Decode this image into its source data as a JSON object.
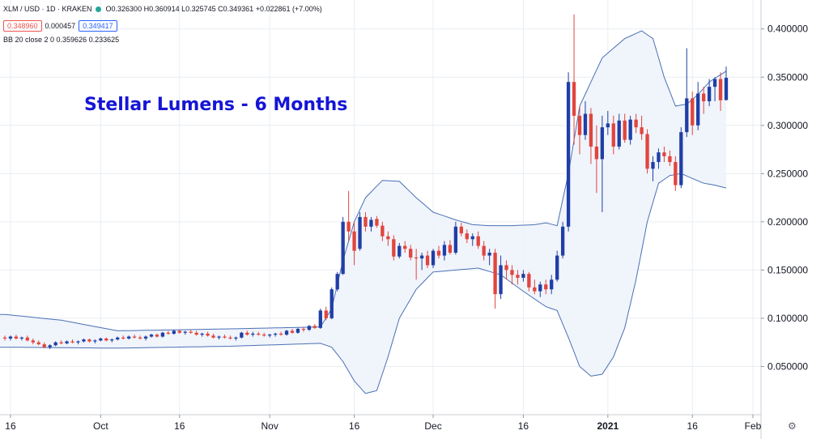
{
  "legend": {
    "symbol": "XLM / USD · 1D · KRAKEN",
    "ohlc": "O0.326300 H0.360914 L0.325745 C0.349361 +0.022861 (+7.00%)",
    "bid": "0.348960",
    "spread": "0.000457",
    "ask": "0.349417",
    "indicator": "BB 20 close 2 0  0.359626 0.233625"
  },
  "annotation": "Stellar Lumens - 6 Months",
  "colors": {
    "up": "#1f3fa6",
    "down": "#e1453d",
    "band_line": "#4a70b5",
    "band_fill": "#eef3fb",
    "grid": "#e9edf3",
    "annotation": "#1515d6"
  },
  "settings_icon": "gear-icon",
  "chart_data": {
    "type": "candlestick",
    "title": "Stellar Lumens - 6 Months",
    "ylim": [
      0.0,
      0.43
    ],
    "y_ticks": [
      "0.400000",
      "0.350000",
      "0.300000",
      "0.250000",
      "0.200000",
      "0.150000",
      "0.100000",
      "0.050000"
    ],
    "x_ticks": [
      "16",
      "Oct",
      "16",
      "Nov",
      "16",
      "Dec",
      "16",
      "2021",
      "16",
      "Feb"
    ],
    "grid": true,
    "series": [
      {
        "name": "XLM / USD",
        "ohlc": [
          [
            0.08,
            0.082,
            0.077,
            0.079
          ],
          [
            0.079,
            0.082,
            0.077,
            0.081
          ],
          [
            0.081,
            0.083,
            0.078,
            0.079
          ],
          [
            0.079,
            0.081,
            0.077,
            0.08
          ],
          [
            0.08,
            0.082,
            0.076,
            0.077
          ],
          [
            0.077,
            0.079,
            0.073,
            0.075
          ],
          [
            0.075,
            0.077,
            0.072,
            0.073
          ],
          [
            0.073,
            0.075,
            0.069,
            0.07
          ],
          [
            0.07,
            0.073,
            0.068,
            0.072
          ],
          [
            0.072,
            0.076,
            0.071,
            0.075
          ],
          [
            0.075,
            0.077,
            0.073,
            0.074
          ],
          [
            0.074,
            0.077,
            0.073,
            0.076
          ],
          [
            0.076,
            0.078,
            0.074,
            0.075
          ],
          [
            0.075,
            0.077,
            0.073,
            0.076
          ],
          [
            0.076,
            0.079,
            0.075,
            0.078
          ],
          [
            0.078,
            0.079,
            0.075,
            0.076
          ],
          [
            0.076,
            0.078,
            0.074,
            0.077
          ],
          [
            0.077,
            0.08,
            0.076,
            0.079
          ],
          [
            0.079,
            0.08,
            0.076,
            0.077
          ],
          [
            0.077,
            0.079,
            0.075,
            0.078
          ],
          [
            0.078,
            0.081,
            0.077,
            0.08
          ],
          [
            0.08,
            0.082,
            0.078,
            0.079
          ],
          [
            0.079,
            0.082,
            0.078,
            0.081
          ],
          [
            0.081,
            0.083,
            0.079,
            0.08
          ],
          [
            0.08,
            0.082,
            0.078,
            0.079
          ],
          [
            0.079,
            0.082,
            0.077,
            0.081
          ],
          [
            0.081,
            0.084,
            0.08,
            0.083
          ],
          [
            0.083,
            0.084,
            0.08,
            0.081
          ],
          [
            0.081,
            0.086,
            0.08,
            0.085
          ],
          [
            0.085,
            0.087,
            0.083,
            0.084
          ],
          [
            0.084,
            0.088,
            0.083,
            0.087
          ],
          [
            0.087,
            0.088,
            0.084,
            0.085
          ],
          [
            0.085,
            0.087,
            0.083,
            0.086
          ],
          [
            0.086,
            0.088,
            0.084,
            0.085
          ],
          [
            0.085,
            0.087,
            0.082,
            0.083
          ],
          [
            0.083,
            0.085,
            0.081,
            0.084
          ],
          [
            0.084,
            0.086,
            0.081,
            0.082
          ],
          [
            0.082,
            0.084,
            0.079,
            0.08
          ],
          [
            0.08,
            0.082,
            0.078,
            0.081
          ],
          [
            0.081,
            0.083,
            0.079,
            0.08
          ],
          [
            0.08,
            0.082,
            0.078,
            0.079
          ],
          [
            0.079,
            0.081,
            0.077,
            0.08
          ],
          [
            0.08,
            0.086,
            0.079,
            0.085
          ],
          [
            0.085,
            0.087,
            0.082,
            0.083
          ],
          [
            0.083,
            0.086,
            0.081,
            0.084
          ],
          [
            0.084,
            0.086,
            0.082,
            0.083
          ],
          [
            0.083,
            0.085,
            0.081,
            0.082
          ],
          [
            0.082,
            0.084,
            0.08,
            0.083
          ],
          [
            0.083,
            0.085,
            0.081,
            0.084
          ],
          [
            0.084,
            0.086,
            0.082,
            0.083
          ],
          [
            0.083,
            0.088,
            0.082,
            0.087
          ],
          [
            0.087,
            0.089,
            0.084,
            0.085
          ],
          [
            0.085,
            0.09,
            0.084,
            0.089
          ],
          [
            0.089,
            0.091,
            0.086,
            0.088
          ],
          [
            0.088,
            0.093,
            0.087,
            0.092
          ],
          [
            0.092,
            0.094,
            0.089,
            0.09
          ],
          [
            0.09,
            0.11,
            0.089,
            0.108
          ],
          [
            0.108,
            0.112,
            0.098,
            0.1
          ],
          [
            0.1,
            0.132,
            0.099,
            0.13
          ],
          [
            0.13,
            0.148,
            0.128,
            0.146
          ],
          [
            0.146,
            0.205,
            0.145,
            0.2
          ],
          [
            0.2,
            0.232,
            0.18,
            0.19
          ],
          [
            0.19,
            0.2,
            0.155,
            0.17
          ],
          [
            0.172,
            0.21,
            0.17,
            0.205
          ],
          [
            0.205,
            0.21,
            0.19,
            0.195
          ],
          [
            0.195,
            0.205,
            0.19,
            0.202
          ],
          [
            0.203,
            0.206,
            0.194,
            0.196
          ],
          [
            0.196,
            0.2,
            0.18,
            0.185
          ],
          [
            0.185,
            0.19,
            0.175,
            0.182
          ],
          [
            0.182,
            0.186,
            0.16,
            0.164
          ],
          [
            0.164,
            0.178,
            0.162,
            0.175
          ],
          [
            0.175,
            0.18,
            0.168,
            0.172
          ],
          [
            0.172,
            0.176,
            0.16,
            0.163
          ],
          [
            0.163,
            0.172,
            0.14,
            0.162
          ],
          [
            0.162,
            0.168,
            0.15,
            0.165
          ],
          [
            0.165,
            0.17,
            0.152,
            0.155
          ],
          [
            0.155,
            0.172,
            0.152,
            0.17
          ],
          [
            0.17,
            0.175,
            0.162,
            0.165
          ],
          [
            0.165,
            0.18,
            0.16,
            0.176
          ],
          [
            0.176,
            0.181,
            0.166,
            0.168
          ],
          [
            0.168,
            0.2,
            0.166,
            0.195
          ],
          [
            0.195,
            0.199,
            0.185,
            0.188
          ],
          [
            0.188,
            0.192,
            0.178,
            0.182
          ],
          [
            0.182,
            0.188,
            0.175,
            0.185
          ],
          [
            0.185,
            0.19,
            0.172,
            0.175
          ],
          [
            0.175,
            0.18,
            0.16,
            0.165
          ],
          [
            0.165,
            0.172,
            0.155,
            0.168
          ],
          [
            0.168,
            0.172,
            0.11,
            0.125
          ],
          [
            0.125,
            0.165,
            0.12,
            0.155
          ],
          [
            0.155,
            0.16,
            0.14,
            0.15
          ],
          [
            0.15,
            0.155,
            0.135,
            0.145
          ],
          [
            0.145,
            0.15,
            0.135,
            0.142
          ],
          [
            0.142,
            0.15,
            0.138,
            0.146
          ],
          [
            0.146,
            0.148,
            0.128,
            0.132
          ],
          [
            0.132,
            0.14,
            0.125,
            0.128
          ],
          [
            0.128,
            0.138,
            0.122,
            0.135
          ],
          [
            0.135,
            0.14,
            0.125,
            0.13
          ],
          [
            0.13,
            0.145,
            0.125,
            0.14
          ],
          [
            0.14,
            0.17,
            0.138,
            0.165
          ],
          [
            0.165,
            0.2,
            0.162,
            0.195
          ],
          [
            0.195,
            0.355,
            0.19,
            0.345
          ],
          [
            0.345,
            0.415,
            0.28,
            0.31
          ],
          [
            0.31,
            0.32,
            0.27,
            0.29
          ],
          [
            0.29,
            0.325,
            0.285,
            0.312
          ],
          [
            0.312,
            0.318,
            0.26,
            0.278
          ],
          [
            0.278,
            0.3,
            0.23,
            0.265
          ],
          [
            0.265,
            0.31,
            0.21,
            0.298
          ],
          [
            0.298,
            0.315,
            0.29,
            0.302
          ],
          [
            0.302,
            0.31,
            0.27,
            0.278
          ],
          [
            0.278,
            0.312,
            0.275,
            0.305
          ],
          [
            0.305,
            0.312,
            0.282,
            0.285
          ],
          [
            0.285,
            0.31,
            0.28,
            0.306
          ],
          [
            0.306,
            0.312,
            0.292,
            0.298
          ],
          [
            0.298,
            0.31,
            0.285,
            0.291
          ],
          [
            0.291,
            0.296,
            0.25,
            0.255
          ],
          [
            0.255,
            0.268,
            0.242,
            0.262
          ],
          [
            0.262,
            0.276,
            0.255,
            0.272
          ],
          [
            0.272,
            0.278,
            0.262,
            0.268
          ],
          [
            0.268,
            0.274,
            0.258,
            0.262
          ],
          [
            0.262,
            0.268,
            0.232,
            0.238
          ],
          [
            0.238,
            0.298,
            0.235,
            0.293
          ],
          [
            0.293,
            0.38,
            0.288,
            0.328
          ],
          [
            0.328,
            0.335,
            0.29,
            0.3
          ],
          [
            0.3,
            0.345,
            0.295,
            0.333
          ],
          [
            0.333,
            0.34,
            0.312,
            0.325
          ],
          [
            0.325,
            0.348,
            0.32,
            0.34
          ],
          [
            0.34,
            0.35,
            0.325,
            0.348
          ],
          [
            0.348,
            0.355,
            0.315,
            0.326
          ],
          [
            0.3263,
            0.360914,
            0.325745,
            0.349361
          ]
        ]
      },
      {
        "name": "BB upper",
        "points": [
          [
            0,
            0.104
          ],
          [
            10,
            0.098
          ],
          [
            20,
            0.087
          ],
          [
            40,
            0.089
          ],
          [
            56,
            0.091
          ],
          [
            58,
            0.11
          ],
          [
            60,
            0.16
          ],
          [
            62,
            0.2
          ],
          [
            64,
            0.225
          ],
          [
            67,
            0.243
          ],
          [
            70,
            0.242
          ],
          [
            73,
            0.225
          ],
          [
            76,
            0.21
          ],
          [
            80,
            0.202
          ],
          [
            83,
            0.197
          ],
          [
            86,
            0.196
          ],
          [
            90,
            0.196
          ],
          [
            94,
            0.197
          ],
          [
            96,
            0.199
          ],
          [
            98,
            0.196
          ],
          [
            100,
            0.25
          ],
          [
            102,
            0.32
          ],
          [
            106,
            0.37
          ],
          [
            110,
            0.39
          ],
          [
            113,
            0.398
          ],
          [
            115,
            0.39
          ],
          [
            117,
            0.35
          ],
          [
            119,
            0.32
          ],
          [
            121,
            0.322
          ],
          [
            123,
            0.332
          ],
          [
            125,
            0.345
          ],
          [
            129,
            0.36
          ]
        ]
      },
      {
        "name": "BB lower",
        "points": [
          [
            0,
            0.07
          ],
          [
            20,
            0.069
          ],
          [
            40,
            0.071
          ],
          [
            56,
            0.074
          ],
          [
            58,
            0.07
          ],
          [
            60,
            0.055
          ],
          [
            62,
            0.035
          ],
          [
            64,
            0.022
          ],
          [
            66,
            0.025
          ],
          [
            68,
            0.06
          ],
          [
            70,
            0.1
          ],
          [
            73,
            0.13
          ],
          [
            76,
            0.148
          ],
          [
            80,
            0.15
          ],
          [
            84,
            0.152
          ],
          [
            88,
            0.145
          ],
          [
            92,
            0.128
          ],
          [
            96,
            0.112
          ],
          [
            98,
            0.108
          ],
          [
            100,
            0.08
          ],
          [
            102,
            0.05
          ],
          [
            104,
            0.04
          ],
          [
            106,
            0.042
          ],
          [
            108,
            0.06
          ],
          [
            110,
            0.09
          ],
          [
            112,
            0.14
          ],
          [
            114,
            0.2
          ],
          [
            116,
            0.24
          ],
          [
            118,
            0.248
          ],
          [
            120,
            0.25
          ],
          [
            122,
            0.245
          ],
          [
            124,
            0.24
          ],
          [
            126,
            0.238
          ],
          [
            129,
            0.233625
          ]
        ]
      }
    ]
  }
}
